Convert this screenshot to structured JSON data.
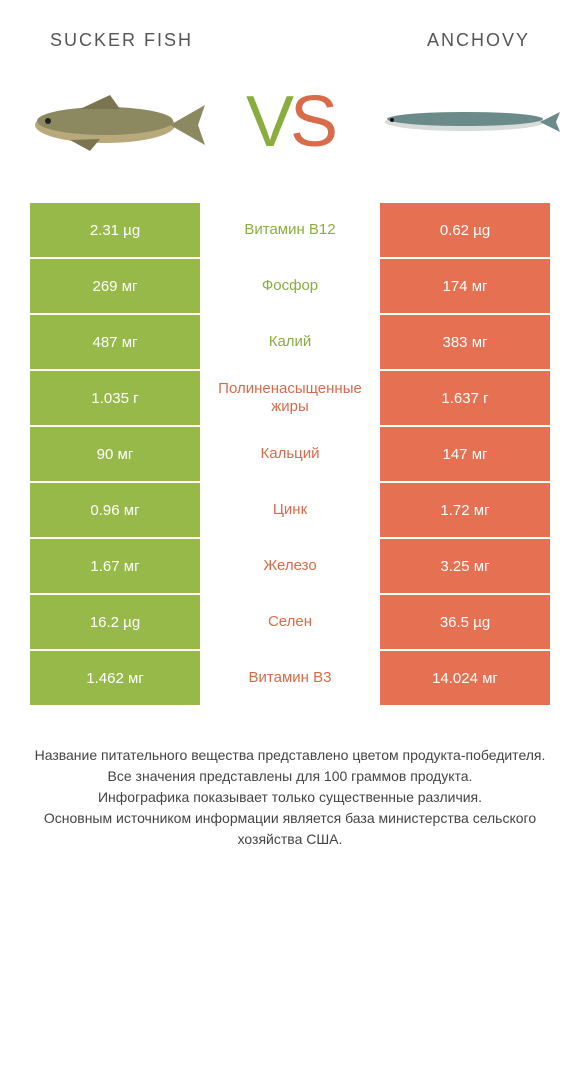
{
  "colors": {
    "left": "#97b94a",
    "right": "#e57052",
    "left_text": "#8aad3f",
    "right_text": "#d86b4a",
    "row_gap": "#ffffff"
  },
  "header": {
    "left_title": "SUCKER FISH",
    "right_title": "ANCHOVY"
  },
  "vs": {
    "v": "V",
    "s": "S"
  },
  "rows": [
    {
      "left": "2.31 µg",
      "mid": "Витамин B12",
      "right": "0.62 µg",
      "winner": "left"
    },
    {
      "left": "269 мг",
      "mid": "Фосфор",
      "right": "174 мг",
      "winner": "left"
    },
    {
      "left": "487 мг",
      "mid": "Калий",
      "right": "383 мг",
      "winner": "left"
    },
    {
      "left": "1.035 г",
      "mid": "Полиненасыщенные жиры",
      "right": "1.637 г",
      "winner": "right"
    },
    {
      "left": "90 мг",
      "mid": "Кальций",
      "right": "147 мг",
      "winner": "right"
    },
    {
      "left": "0.96 мг",
      "mid": "Цинк",
      "right": "1.72 мг",
      "winner": "right"
    },
    {
      "left": "1.67 мг",
      "mid": "Железо",
      "right": "3.25 мг",
      "winner": "right"
    },
    {
      "left": "16.2 µg",
      "mid": "Селен",
      "right": "36.5 µg",
      "winner": "right"
    },
    {
      "left": "1.462 мг",
      "mid": "Витамин B3",
      "right": "14.024 мг",
      "winner": "right"
    }
  ],
  "footer": {
    "line1": "Название питательного вещества представлено цветом продукта-победителя.",
    "line2": "Все значения представлены для 100 граммов продукта.",
    "line3": "Инфографика показывает только существенные различия.",
    "line4": "Основным источником информации является база министерства сельского хозяйства США."
  }
}
